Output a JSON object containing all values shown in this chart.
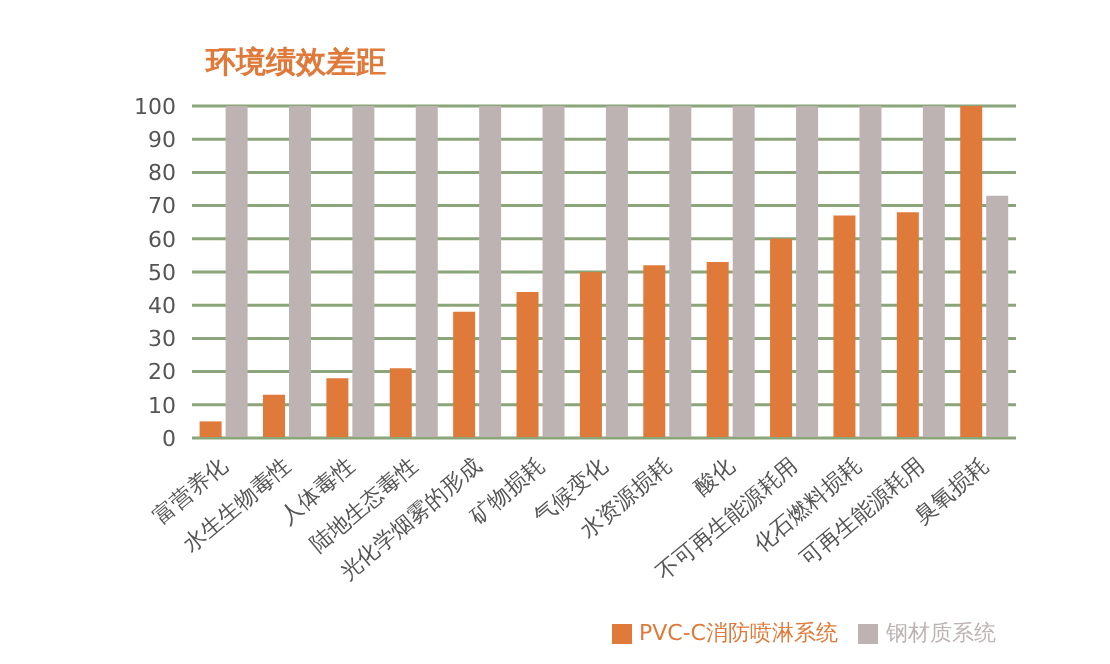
{
  "chart_data": {
    "type": "bar",
    "title": "环境绩效差距",
    "categories": [
      "富营养化",
      "水生生物毒性",
      "人体毒性",
      "陆地生态毒性",
      "光化学烟雾的形成",
      "矿物损耗",
      "气候变化",
      "水资源损耗",
      "酸化",
      "不可再生能源耗用",
      "化石燃料损耗",
      "可再生能源耗用",
      "臭氧损耗"
    ],
    "series": [
      {
        "name": "PVC-C消防喷淋系统",
        "color": "#e07a3a",
        "values": [
          5,
          13,
          18,
          21,
          38,
          44,
          50,
          52,
          53,
          60,
          67,
          68,
          100
        ]
      },
      {
        "name": "钢材质系统",
        "color": "#bdb3b3",
        "values": [
          100,
          100,
          100,
          100,
          100,
          100,
          100,
          100,
          100,
          100,
          100,
          100,
          73
        ]
      }
    ],
    "ylim": [
      0,
      100
    ],
    "yticks": [
      0,
      10,
      20,
      30,
      40,
      50,
      60,
      70,
      80,
      90,
      100
    ],
    "grid": "y",
    "legend": "bottom right"
  }
}
